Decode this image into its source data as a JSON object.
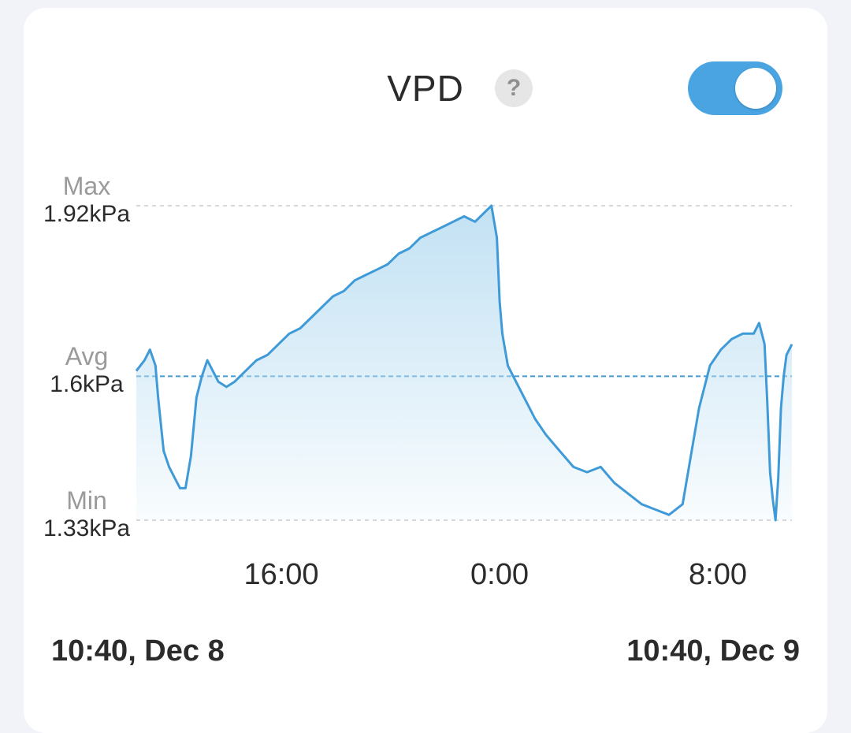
{
  "header": {
    "title": "VPD",
    "help_symbol": "?",
    "toggle_on": true
  },
  "colors": {
    "line": "#3f9ad8",
    "accent": "#4aa4e2",
    "reference": "#d8d8d8"
  },
  "chart_data": {
    "type": "area",
    "unit": "kPa",
    "x_unit": "hours",
    "y_range": [
      1.33,
      1.92
    ],
    "reference_lines": [
      {
        "name": "Max",
        "label": "1.92kPa",
        "value": 1.92
      },
      {
        "name": "Avg",
        "label": "1.6kPa",
        "value": 1.6
      },
      {
        "name": "Min",
        "label": "1.33kPa",
        "value": 1.33
      }
    ],
    "x_range": [
      "10:40, Dec 8",
      "10:40, Dec 9"
    ],
    "x_ticks": [
      "16:00",
      "0:00",
      "8:00"
    ],
    "x_tick_hours": [
      5.33,
      13.33,
      21.33
    ],
    "series": [
      {
        "x": [
          0,
          0.3,
          0.5,
          0.7,
          0.8,
          1.0,
          1.2,
          1.4,
          1.6,
          1.8,
          2.0,
          2.2,
          2.4,
          2.6,
          2.8,
          3.0,
          3.3,
          3.6,
          4.0,
          4.4,
          4.8,
          5.2,
          5.6,
          6.0,
          6.4,
          6.8,
          7.2,
          7.6,
          8.0,
          8.4,
          8.8,
          9.2,
          9.6,
          10.0,
          10.4,
          10.8,
          11.2,
          11.6,
          12.0,
          12.4,
          12.8,
          13.0,
          13.2,
          13.3,
          13.4,
          13.5,
          13.6,
          13.8,
          14.0,
          14.3,
          14.6,
          15.0,
          15.5,
          16.0,
          16.5,
          17.0,
          17.5,
          18.0,
          18.5,
          19.0,
          19.5,
          20.0,
          20.3,
          20.6,
          21.0,
          21.4,
          21.8,
          22.2,
          22.6,
          22.8,
          23.0,
          23.1,
          23.2,
          23.3,
          23.4,
          23.5,
          23.6,
          23.7,
          23.8,
          24.0
        ],
        "y": [
          1.61,
          1.63,
          1.65,
          1.62,
          1.56,
          1.46,
          1.43,
          1.41,
          1.39,
          1.39,
          1.45,
          1.56,
          1.6,
          1.63,
          1.61,
          1.59,
          1.58,
          1.59,
          1.61,
          1.63,
          1.64,
          1.66,
          1.68,
          1.69,
          1.71,
          1.73,
          1.75,
          1.76,
          1.78,
          1.79,
          1.8,
          1.81,
          1.83,
          1.84,
          1.86,
          1.87,
          1.88,
          1.89,
          1.9,
          1.89,
          1.91,
          1.92,
          1.86,
          1.74,
          1.68,
          1.65,
          1.62,
          1.6,
          1.58,
          1.55,
          1.52,
          1.49,
          1.46,
          1.43,
          1.42,
          1.43,
          1.4,
          1.38,
          1.36,
          1.35,
          1.34,
          1.36,
          1.45,
          1.54,
          1.62,
          1.65,
          1.67,
          1.68,
          1.68,
          1.7,
          1.66,
          1.55,
          1.42,
          1.37,
          1.33,
          1.41,
          1.54,
          1.6,
          1.64,
          1.66
        ]
      }
    ]
  }
}
